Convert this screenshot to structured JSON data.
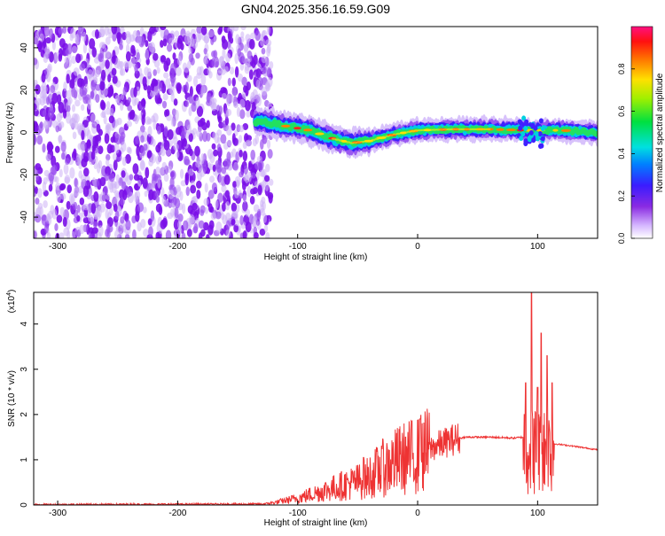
{
  "title": "GN04.2025.356.16.59.G09",
  "chart_data": [
    {
      "type": "heatmap",
      "xlabel": "Height of straight line (km)",
      "ylabel": "Frequency (Hz)",
      "xlim": [
        -320,
        150
      ],
      "ylim": [
        -50,
        50
      ],
      "xticks": [
        -300,
        -200,
        -100,
        0,
        100
      ],
      "yticks": [
        -40,
        -20,
        0,
        20,
        40
      ],
      "colorbar": {
        "label": "Normalized spectral amplitude",
        "range": [
          0,
          1
        ],
        "ticks": [
          0.0,
          0.2,
          0.4,
          0.6,
          0.8
        ],
        "tick_labels": [
          "0.0",
          "0.2",
          "0.4",
          "0.6",
          "0.8"
        ],
        "colormap": "rainbow (white-violet-blue-cyan-green-yellow-red-magenta)"
      },
      "noise_region_x": [
        -320,
        -130
      ],
      "signal_center_frequency": [
        {
          "x": -130,
          "f": 5
        },
        {
          "x": -110,
          "f": 3
        },
        {
          "x": -90,
          "f": 1
        },
        {
          "x": -70,
          "f": -3
        },
        {
          "x": -55,
          "f": -5
        },
        {
          "x": -40,
          "f": -4
        },
        {
          "x": -20,
          "f": -1
        },
        {
          "x": 0,
          "f": 1
        },
        {
          "x": 30,
          "f": 1.5
        },
        {
          "x": 60,
          "f": 1.5
        },
        {
          "x": 90,
          "f": 1
        },
        {
          "x": 120,
          "f": 1
        },
        {
          "x": 150,
          "f": 0
        }
      ]
    },
    {
      "type": "line",
      "xlabel": "Height of straight line (km)",
      "ylabel": "SNR (10 * v/v)",
      "y_multiplier": "(x10",
      "y_multiplier_exp": "4",
      "y_multiplier_close": ")",
      "xlim": [
        -320,
        150
      ],
      "ylim": [
        0,
        4.7
      ],
      "xticks": [
        -300,
        -200,
        -100,
        0,
        100
      ],
      "yticks": [
        0,
        1,
        2,
        3,
        4
      ],
      "color": "#ee3333",
      "envelope": [
        {
          "x": -320,
          "y": 0.01
        },
        {
          "x": -130,
          "y": 0.02
        },
        {
          "x": -120,
          "y": 0.05
        },
        {
          "x": -100,
          "y": 0.15
        },
        {
          "x": -80,
          "y": 0.3
        },
        {
          "x": -60,
          "y": 0.45
        },
        {
          "x": -45,
          "y": 0.55
        },
        {
          "x": -30,
          "y": 0.8
        },
        {
          "x": -15,
          "y": 1.0
        },
        {
          "x": 0,
          "y": 1.1
        },
        {
          "x": 15,
          "y": 1.3
        },
        {
          "x": 30,
          "y": 1.45
        },
        {
          "x": 40,
          "y": 1.5
        },
        {
          "x": 60,
          "y": 1.5
        },
        {
          "x": 80,
          "y": 1.48
        },
        {
          "x": 88,
          "y": 1.5
        }
      ],
      "spikes": [
        {
          "x": -45,
          "y": 1.05
        },
        {
          "x": -30,
          "y": 1.3
        },
        {
          "x": -10,
          "y": 1.5
        },
        {
          "x": 2,
          "y": 1.9
        },
        {
          "x": 90,
          "y": 2.7
        },
        {
          "x": 95,
          "y": 4.7
        },
        {
          "x": 100,
          "y": 2.6
        },
        {
          "x": 103,
          "y": 3.8
        },
        {
          "x": 108,
          "y": 3.3
        },
        {
          "x": 112,
          "y": 2.7
        }
      ],
      "tail": [
        {
          "x": 115,
          "y": 1.35
        },
        {
          "x": 130,
          "y": 1.3
        },
        {
          "x": 150,
          "y": 1.22
        }
      ]
    }
  ]
}
